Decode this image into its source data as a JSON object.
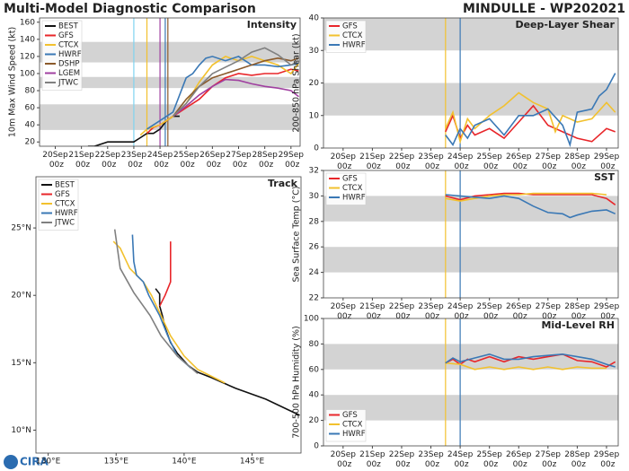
{
  "header": {
    "left": "Multi-Model Diagnostic Comparison",
    "right": "MINDULLE - WP202021"
  },
  "logo": "CIRA",
  "chart_data": [
    {
      "type": "line",
      "title": "Intensity",
      "ylabel": "10m Max Wind Speed (kt)",
      "legend": "upper left",
      "grid": false,
      "xlim": [
        -0.6,
        9.35
      ],
      "ylim": [
        15,
        165
      ],
      "yticks": [
        20,
        40,
        60,
        80,
        100,
        120,
        140,
        160
      ],
      "xticks": [
        {
          "value": 0,
          "label": "20Sep 00z"
        },
        {
          "value": 1,
          "label": "21Sep 00z"
        },
        {
          "value": 2,
          "label": "22Sep 00z"
        },
        {
          "value": 3,
          "label": "23Sep 00z"
        },
        {
          "value": 4,
          "label": "24Sep 00z"
        },
        {
          "value": 5,
          "label": "25Sep 00z"
        },
        {
          "value": 6,
          "label": "26Sep 00z"
        },
        {
          "value": 7,
          "label": "27Sep 00z"
        },
        {
          "value": 8,
          "label": "28Sep 00z"
        },
        {
          "value": 9,
          "label": "29Sep 00z"
        }
      ],
      "bands": [
        [
          34,
          64
        ],
        [
          83,
          96
        ],
        [
          113,
          137
        ]
      ],
      "vlines": [
        {
          "x": 3,
          "color": "#7fd3f0"
        },
        {
          "x": 3.5,
          "color": "#f2c12e"
        },
        {
          "x": 4,
          "color": "#a040a0"
        },
        {
          "x": 4.2,
          "color": "#3a78b5"
        },
        {
          "x": 4.3,
          "color": "#8b5a2b"
        }
      ],
      "series": [
        {
          "name": "BEST",
          "color": "#111111",
          "x": [
            1.25,
            1.5,
            2,
            2.5,
            3,
            3.25,
            3.5,
            3.75,
            4,
            4.25,
            4.5,
            4.75
          ],
          "values": [
            15,
            15,
            20,
            20,
            20,
            25,
            30,
            30,
            35,
            45,
            50,
            50
          ]
        },
        {
          "name": "GFS",
          "color": "#e8262a",
          "x": [
            3.5,
            3.75,
            4,
            4.25,
            4.5,
            4.75,
            5,
            5.5,
            6,
            6.5,
            7,
            7.5,
            8,
            8.5,
            9,
            9.3
          ],
          "values": [
            30,
            37,
            40,
            45,
            50,
            55,
            60,
            70,
            85,
            95,
            100,
            98,
            100,
            100,
            105,
            103
          ]
        },
        {
          "name": "CTCX",
          "color": "#f2c12e",
          "x": [
            3.25,
            3.5,
            4,
            4.5,
            5,
            5.5,
            6,
            6.5,
            7,
            7.5,
            8,
            8.5,
            9,
            9.3
          ],
          "values": [
            28,
            35,
            40,
            50,
            65,
            90,
            110,
            120,
            115,
            120,
            115,
            110,
            100,
            112
          ]
        },
        {
          "name": "HWRF",
          "color": "#3a78b5",
          "x": [
            3.5,
            4,
            4.5,
            5,
            5.25,
            5.5,
            5.75,
            6,
            6.5,
            7,
            7.5,
            8,
            8.5,
            9,
            9.3
          ],
          "values": [
            35,
            45,
            55,
            95,
            100,
            110,
            118,
            120,
            115,
            120,
            110,
            110,
            108,
            110,
            112
          ]
        },
        {
          "name": "DSHP",
          "color": "#8b5a2b",
          "x": [
            4.5,
            5,
            5.5,
            6,
            6.5,
            7,
            7.5,
            8,
            8.5,
            9,
            9.3
          ],
          "values": [
            50,
            70,
            85,
            95,
            100,
            105,
            110,
            115,
            118,
            115,
            118
          ]
        },
        {
          "name": "LGEM",
          "color": "#a040a0",
          "x": [
            4.5,
            5,
            5.5,
            6,
            6.5,
            7,
            7.5,
            8,
            8.5,
            9,
            9.3
          ],
          "values": [
            50,
            62,
            75,
            85,
            93,
            92,
            88,
            85,
            83,
            80,
            73
          ]
        },
        {
          "name": "JTWC",
          "color": "#808080",
          "x": [
            4.5,
            5,
            5.5,
            6,
            7,
            7.5,
            8,
            8.5,
            9,
            9.3
          ],
          "values": [
            50,
            65,
            85,
            100,
            115,
            125,
            130,
            122,
            110,
            115
          ]
        }
      ]
    },
    {
      "type": "line",
      "title": "Deep-Layer Shear",
      "ylabel": "200-850 hPa Shear (kt)",
      "legend": "upper left",
      "grid": false,
      "xlim": [
        -0.67,
        9.4
      ],
      "ylim": [
        0,
        40
      ],
      "yticks": [
        0,
        10,
        20,
        30,
        40
      ],
      "xticks": [
        {
          "value": 0,
          "label": "20Sep 00z"
        },
        {
          "value": 1,
          "label": "21Sep 00z"
        },
        {
          "value": 2,
          "label": "22Sep 00z"
        },
        {
          "value": 3,
          "label": "23Sep 00z"
        },
        {
          "value": 4,
          "label": "24Sep 00z"
        },
        {
          "value": 5,
          "label": "25Sep 00z"
        },
        {
          "value": 6,
          "label": "26Sep 00z"
        },
        {
          "value": 7,
          "label": "27Sep 00z"
        },
        {
          "value": 8,
          "label": "28Sep 00z"
        },
        {
          "value": 9,
          "label": "29Sep 00z"
        }
      ],
      "bands": [
        [
          10,
          20
        ],
        [
          30,
          40
        ]
      ],
      "vlines": [
        {
          "x": 3.5,
          "color": "#f2c12e"
        },
        {
          "x": 4,
          "color": "#3a78b5"
        }
      ],
      "series": [
        {
          "name": "GFS",
          "color": "#e8262a",
          "x": [
            3.5,
            3.75,
            4,
            4.25,
            4.5,
            5,
            5.5,
            6,
            6.5,
            7,
            7.5,
            8,
            8.5,
            9,
            9.3
          ],
          "values": [
            5,
            10,
            3,
            7,
            4,
            6,
            3,
            8,
            13,
            7,
            5,
            3,
            2,
            6,
            5
          ]
        },
        {
          "name": "CTCX",
          "color": "#f2c12e",
          "x": [
            3.5,
            3.75,
            4,
            4.25,
            4.5,
            5,
            5.5,
            6,
            6.5,
            7,
            7.25,
            7.5,
            8,
            8.5,
            9,
            9.3
          ],
          "values": [
            6,
            11,
            2,
            9,
            6,
            10,
            13,
            17,
            14,
            12,
            5,
            10,
            8,
            9,
            14,
            11
          ]
        },
        {
          "name": "HWRF",
          "color": "#3a78b5",
          "x": [
            3.5,
            3.75,
            4,
            4.25,
            4.5,
            5,
            5.5,
            6,
            6.5,
            7,
            7.5,
            7.75,
            8,
            8.5,
            8.75,
            9,
            9.3
          ],
          "values": [
            4,
            1,
            6,
            3,
            7,
            9,
            4,
            10,
            10,
            12,
            7,
            1,
            11,
            12,
            16,
            18,
            23
          ]
        }
      ]
    },
    {
      "type": "line",
      "title": "SST",
      "ylabel": "Sea Surface Temp (°C)",
      "legend": "upper left",
      "grid": false,
      "xlim": [
        -0.67,
        9.4
      ],
      "ylim": [
        22,
        32
      ],
      "yticks": [
        22,
        24,
        26,
        28,
        30,
        32
      ],
      "xticks": [
        {
          "value": 0,
          "label": "20Sep 00z"
        },
        {
          "value": 1,
          "label": "21Sep 00z"
        },
        {
          "value": 2,
          "label": "22Sep 00z"
        },
        {
          "value": 3,
          "label": "23Sep 00z"
        },
        {
          "value": 4,
          "label": "24Sep 00z"
        },
        {
          "value": 5,
          "label": "25Sep 00z"
        },
        {
          "value": 6,
          "label": "26Sep 00z"
        },
        {
          "value": 7,
          "label": "27Sep 00z"
        },
        {
          "value": 8,
          "label": "28Sep 00z"
        },
        {
          "value": 9,
          "label": "29Sep 00z"
        }
      ],
      "bands": [
        [
          24,
          26
        ],
        [
          28,
          30
        ]
      ],
      "vlines": [
        {
          "x": 3.5,
          "color": "#f2c12e"
        },
        {
          "x": 4,
          "color": "#3a78b5"
        }
      ],
      "series": [
        {
          "name": "GFS",
          "color": "#e8262a",
          "x": [
            3.5,
            4,
            4.5,
            5,
            5.5,
            6,
            6.5,
            7,
            7.5,
            8,
            8.5,
            9,
            9.3
          ],
          "values": [
            30,
            29.7,
            30,
            30.1,
            30.2,
            30.2,
            30.1,
            30.1,
            30.1,
            30.1,
            30.1,
            29.8,
            29.3
          ]
        },
        {
          "name": "CTCX",
          "color": "#f2c12e",
          "x": [
            3.5,
            4,
            4.5,
            5,
            5.5,
            6,
            6.5,
            7,
            7.5,
            8,
            8.5,
            9
          ],
          "values": [
            29.8,
            29.6,
            29.8,
            30,
            30.1,
            30.1,
            30.2,
            30.2,
            30.2,
            30.2,
            30.2,
            30.1
          ]
        },
        {
          "name": "HWRF",
          "color": "#3a78b5",
          "x": [
            3.5,
            4,
            4.5,
            5,
            5.5,
            6,
            6.5,
            7,
            7.5,
            7.75,
            8,
            8.5,
            9,
            9.3
          ],
          "values": [
            30.1,
            30,
            29.9,
            29.8,
            30,
            29.8,
            29.2,
            28.7,
            28.6,
            28.3,
            28.5,
            28.8,
            28.9,
            28.6
          ]
        }
      ]
    },
    {
      "type": "line",
      "title": "Mid-Level RH",
      "ylabel": "700-500 hPa Humidity (%)",
      "legend": "lower left",
      "grid": false,
      "xlim": [
        -0.67,
        9.4
      ],
      "ylim": [
        0,
        100
      ],
      "yticks": [
        0,
        20,
        40,
        60,
        80,
        100
      ],
      "xticks": [
        {
          "value": 0,
          "label": "20Sep 00z"
        },
        {
          "value": 1,
          "label": "21Sep 00z"
        },
        {
          "value": 2,
          "label": "22Sep 00z"
        },
        {
          "value": 3,
          "label": "23Sep 00z"
        },
        {
          "value": 4,
          "label": "24Sep 00z"
        },
        {
          "value": 5,
          "label": "25Sep 00z"
        },
        {
          "value": 6,
          "label": "26Sep 00z"
        },
        {
          "value": 7,
          "label": "27Sep 00z"
        },
        {
          "value": 8,
          "label": "28Sep 00z"
        },
        {
          "value": 9,
          "label": "29Sep 00z"
        }
      ],
      "bands": [
        [
          20,
          40
        ],
        [
          60,
          80
        ]
      ],
      "vlines": [
        {
          "x": 3.5,
          "color": "#f2c12e"
        },
        {
          "x": 4,
          "color": "#3a78b5"
        }
      ],
      "series": [
        {
          "name": "GFS",
          "color": "#e8262a",
          "x": [
            3.5,
            3.75,
            4,
            4.25,
            4.5,
            5,
            5.5,
            6,
            6.5,
            7,
            7.5,
            8,
            8.5,
            9,
            9.3
          ],
          "values": [
            65,
            68,
            64,
            68,
            66,
            70,
            66,
            70,
            68,
            70,
            72,
            67,
            66,
            62,
            66
          ]
        },
        {
          "name": "CTCX",
          "color": "#f2c12e",
          "x": [
            3.5,
            4,
            4.5,
            5,
            5.5,
            6,
            6.5,
            7,
            7.5,
            8,
            8.5,
            9
          ],
          "values": [
            65,
            64,
            60,
            62,
            60,
            62,
            60,
            62,
            60,
            62,
            61,
            61
          ]
        },
        {
          "name": "HWRF",
          "color": "#3a78b5",
          "x": [
            3.5,
            3.75,
            4,
            4.5,
            5,
            5.5,
            6,
            6.5,
            7,
            7.5,
            8,
            8.5,
            9,
            9.3
          ],
          "values": [
            65,
            69,
            66,
            69,
            72,
            68,
            68,
            70,
            71,
            72,
            70,
            68,
            64,
            62
          ]
        }
      ]
    },
    {
      "type": "line",
      "title": "Track",
      "legend": "upper left",
      "grid": false,
      "xlim": [
        129.1,
        148.6
      ],
      "ylim": [
        8.3,
        28.8
      ],
      "xticks": [
        {
          "value": 130,
          "label": "130°E"
        },
        {
          "value": 135,
          "label": "135°E"
        },
        {
          "value": 140,
          "label": "140°E"
        },
        {
          "value": 145,
          "label": "145°E"
        }
      ],
      "yticks": [
        {
          "value": 10,
          "label": "10°N"
        },
        {
          "value": 15,
          "label": "15°N"
        },
        {
          "value": 20,
          "label": "20°N"
        },
        {
          "value": 25,
          "label": "25°N"
        }
      ],
      "series": [
        {
          "name": "BEST",
          "color": "#111111",
          "x": [
            148.5,
            146,
            143.8,
            142,
            141,
            140.3,
            139.5,
            139,
            138.6,
            138.4,
            138.2,
            138.2,
            137.9
          ],
          "values": [
            11.1,
            12.3,
            13.1,
            13.9,
            14.3,
            14.8,
            15.7,
            16.5,
            17.6,
            18.5,
            19.2,
            20.1,
            20.5
          ]
        },
        {
          "name": "GFS",
          "color": "#e8262a",
          "x": [
            138.2,
            138.6,
            139,
            139,
            139
          ],
          "values": [
            19.2,
            20,
            21,
            22,
            24
          ]
        },
        {
          "name": "CTCX",
          "color": "#f2c12e",
          "x": [
            143,
            141,
            140,
            139,
            138.3,
            137.6,
            137,
            136,
            135.3,
            134.8
          ],
          "values": [
            13.5,
            14.5,
            15.5,
            17,
            18.5,
            20,
            21,
            22,
            23.5,
            24
          ]
        },
        {
          "name": "HWRF",
          "color": "#3a78b5",
          "x": [
            140.5,
            139.5,
            138.8,
            138.2,
            137.4,
            137,
            136.5,
            136.3,
            136.2
          ],
          "values": [
            14.6,
            15.5,
            17,
            18.5,
            20,
            21,
            21.5,
            22.5,
            24.5
          ]
        },
        {
          "name": "JTWC",
          "color": "#808080",
          "x": [
            141,
            139.5,
            138.3,
            137.5,
            136.3,
            135.3,
            134.9
          ],
          "values": [
            14.2,
            15.5,
            17,
            18.5,
            20.2,
            22,
            24.9
          ]
        }
      ]
    }
  ]
}
